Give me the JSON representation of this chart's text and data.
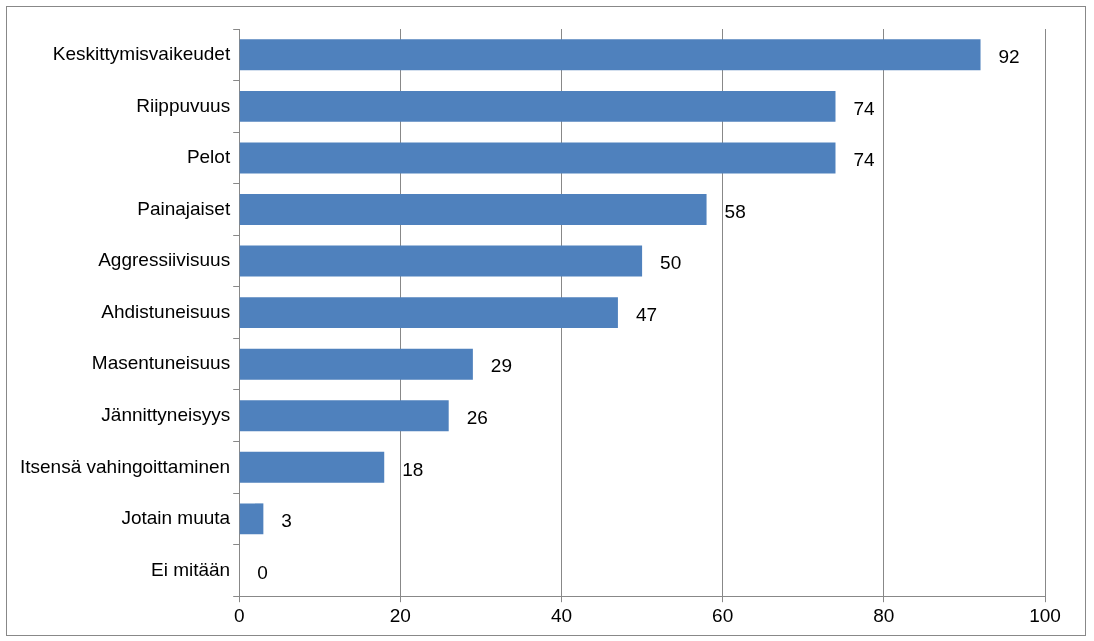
{
  "chart_data": {
    "type": "bar",
    "orientation": "horizontal",
    "categories": [
      "Keskittymisvaikeudet",
      "Riippuvuus",
      "Pelot",
      "Painajaiset",
      "Aggressiivisuus",
      "Ahdistuneisuus",
      "Masentuneisuus",
      "Jännittyneisyys",
      "Itsensä vahingoittaminen",
      "Jotain muuta",
      "Ei mitään"
    ],
    "values": [
      92,
      74,
      74,
      58,
      50,
      47,
      29,
      26,
      18,
      3,
      0
    ],
    "color": "#4f81bd",
    "xlim": [
      0,
      100
    ],
    "xticks": [
      0,
      20,
      40,
      60,
      80,
      100
    ],
    "grid": "x",
    "data_labels": true,
    "legend": false
  }
}
